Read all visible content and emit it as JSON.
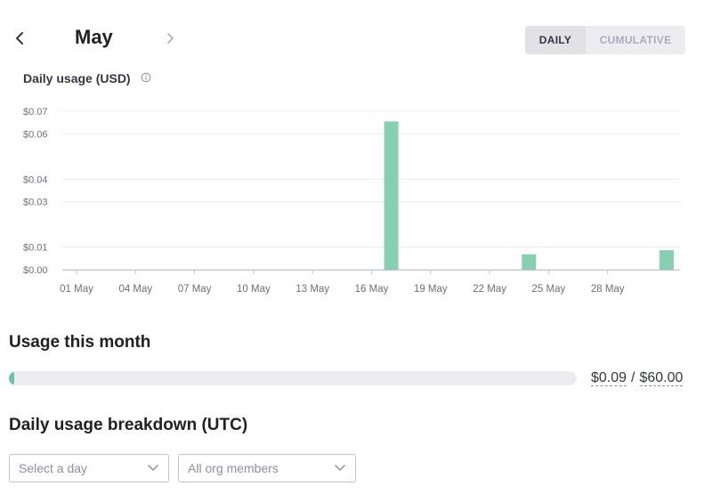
{
  "header": {
    "month": "May",
    "toggle": {
      "daily_label": "DAILY",
      "cumulative_label": "CUMULATIVE",
      "active": "daily"
    }
  },
  "chart_title": "Daily usage (USD)",
  "chart_data": {
    "type": "bar",
    "title": "Daily usage (USD)",
    "xlabel": "",
    "ylabel": "",
    "ylim": [
      0,
      0.07
    ],
    "y_ticks": [
      "$0.07",
      "$0.06",
      "$0.04",
      "$0.03",
      "$0.01",
      "$0.00"
    ],
    "y_tick_values": [
      0.07,
      0.06,
      0.04,
      0.03,
      0.01,
      0.0
    ],
    "x_tick_labels": [
      "01 May",
      "04 May",
      "07 May",
      "10 May",
      "13 May",
      "16 May",
      "19 May",
      "22 May",
      "25 May",
      "28 May"
    ],
    "x_tick_days": [
      1,
      4,
      7,
      10,
      13,
      16,
      19,
      22,
      25,
      28
    ],
    "x_range_days": [
      1,
      31
    ],
    "days": [
      1,
      2,
      3,
      4,
      5,
      6,
      7,
      8,
      9,
      10,
      11,
      12,
      13,
      14,
      15,
      16,
      17,
      18,
      19,
      20,
      21,
      22,
      23,
      24,
      25,
      26,
      27,
      28,
      29,
      30,
      31
    ],
    "values": [
      0,
      0,
      0,
      0,
      0,
      0,
      0,
      0,
      0,
      0,
      0,
      0,
      0,
      0,
      0,
      0,
      0.0655,
      0,
      0,
      0,
      0,
      0,
      0,
      0.0068,
      0,
      0,
      0,
      0,
      0,
      0,
      0.0086
    ],
    "bar_color": "#86cfb3",
    "grid": true
  },
  "usage": {
    "title": "Usage this month",
    "used": "$0.09",
    "separator": "/",
    "limit": "$60.00",
    "fraction": 0.0015,
    "fill_color": "#6bc4a6"
  },
  "breakdown": {
    "title": "Daily usage breakdown (UTC)",
    "day_select_placeholder": "Select a day",
    "members_select_value": "All org members"
  },
  "icons": {
    "prev": "chevron-left-icon",
    "next": "chevron-right-icon",
    "info": "info-icon",
    "dropdown": "chevron-down-icon"
  }
}
